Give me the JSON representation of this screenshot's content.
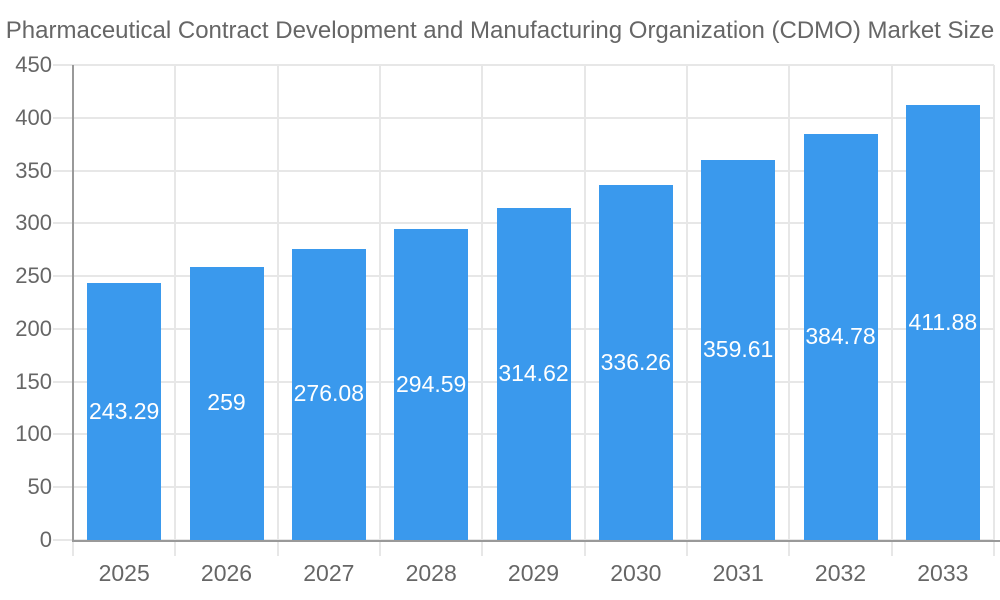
{
  "title": "Pharmaceutical Contract Development and Manufacturing Organization (CDMO) Market Size",
  "colors": {
    "bar": "#3A99ED",
    "axis_line": "#999999",
    "grid_line": "#E7E7E7",
    "text": "#666666",
    "value_label_text": "#FFFFFF",
    "background": "#FFFFFF"
  },
  "chart_data": {
    "type": "bar",
    "title": "Pharmaceutical Contract Development and Manufacturing Organization (CDMO) Market Size",
    "categories": [
      "2025",
      "2026",
      "2027",
      "2028",
      "2029",
      "2030",
      "2031",
      "2032",
      "2033"
    ],
    "values": [
      243.29,
      259,
      276.08,
      294.59,
      314.62,
      336.26,
      359.61,
      384.78,
      411.88
    ],
    "value_labels": [
      "243.29",
      "259",
      "276.08",
      "294.59",
      "314.62",
      "336.26",
      "359.61",
      "384.78",
      "411.88"
    ],
    "xlabel": "",
    "ylabel": "",
    "ylim": [
      0,
      450
    ],
    "ytick_step": 50,
    "yticks": [
      0,
      50,
      100,
      150,
      200,
      250,
      300,
      350,
      400,
      450
    ],
    "grid": true,
    "legend": "none"
  }
}
